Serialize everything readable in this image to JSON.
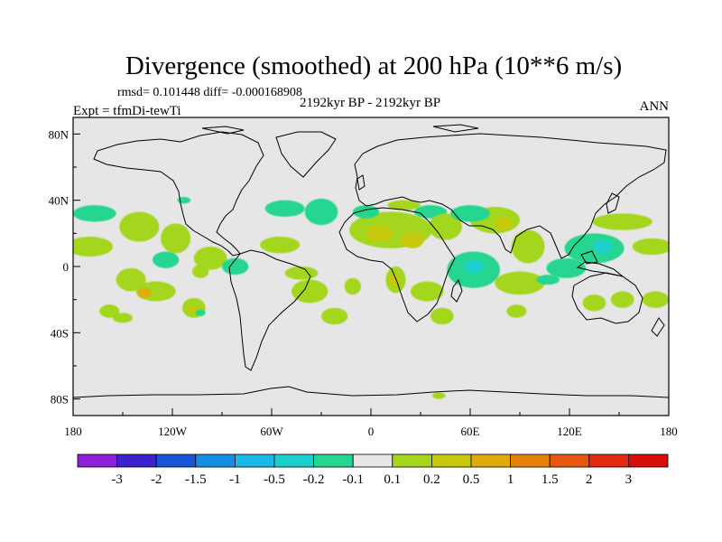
{
  "chart_data": {
    "type": "filled-contour-map",
    "title": "Divergence (smoothed) at 200 hPa (10**6 m/s)",
    "stats": "rmsd= 0.101448 diff= -0.000168908",
    "subtitle": "2192kyr BP - 2192kyr BP",
    "experiment": "Expt = tfmDi-tewTi",
    "season": "ANN",
    "x_range": [
      -180,
      180
    ],
    "y_range": [
      -90,
      90
    ],
    "x_ticks": [
      {
        "value": -180,
        "label": "180"
      },
      {
        "value": -120,
        "label": "120W"
      },
      {
        "value": -60,
        "label": "60W"
      },
      {
        "value": 0,
        "label": "0"
      },
      {
        "value": 60,
        "label": "60E"
      },
      {
        "value": 120,
        "label": "120E"
      },
      {
        "value": 180,
        "label": "180"
      }
    ],
    "y_ticks": [
      {
        "value": 80,
        "label": "80N"
      },
      {
        "value": 40,
        "label": "40N"
      },
      {
        "value": 0,
        "label": "0"
      },
      {
        "value": -40,
        "label": "40S"
      },
      {
        "value": -80,
        "label": "80S"
      }
    ],
    "colorbar": {
      "labels": [
        "-3",
        "-2",
        "-1.5",
        "-1",
        "-0.5",
        "-0.2",
        "-0.1",
        "0.1",
        "0.2",
        "0.5",
        "1",
        "1.5",
        "2",
        "3"
      ],
      "colors": [
        "#8d1fd6",
        "#3b22cc",
        "#1a54d6",
        "#168ee0",
        "#1bb7e6",
        "#1bd0cc",
        "#26d690",
        "#e6e6e6",
        "#a3d61c",
        "#c8c80e",
        "#e0ab0c",
        "#e6820c",
        "#e6560e",
        "#e62a12",
        "#d90c0c"
      ]
    },
    "regions": [
      {
        "level": "0.1",
        "lon": -170,
        "lat": 12,
        "rlon": 14,
        "rlat": 6
      },
      {
        "level": "-0.1",
        "lon": -167,
        "lat": 32,
        "rlon": 13,
        "rlat": 5
      },
      {
        "level": "0.1",
        "lon": -140,
        "lat": 24,
        "rlon": 12,
        "rlat": 9
      },
      {
        "level": "0.1",
        "lon": -118,
        "lat": 17,
        "rlon": 9,
        "rlat": 9
      },
      {
        "level": "0.1",
        "lon": -145,
        "lat": -8,
        "rlon": 9,
        "rlat": 7
      },
      {
        "level": "0.1",
        "lon": -130,
        "lat": -15,
        "rlon": 12,
        "rlat": 6
      },
      {
        "level": "0.5",
        "lon": -137,
        "lat": -16,
        "rlon": 4,
        "rlat": 3
      },
      {
        "level": "0.1",
        "lon": -103,
        "lat": -3,
        "rlon": 5,
        "rlat": 4
      },
      {
        "level": "0.1",
        "lon": -107,
        "lat": -25,
        "rlon": 7,
        "rlat": 6
      },
      {
        "level": "0.2",
        "lon": -108,
        "lat": -26,
        "rlon": 3,
        "rlat": 2
      },
      {
        "level": "-0.1",
        "lon": -103,
        "lat": -28,
        "rlon": 3,
        "rlat": 2
      },
      {
        "level": "0.1",
        "lon": -97,
        "lat": 5,
        "rlon": 10,
        "rlat": 7
      },
      {
        "level": "-0.1",
        "lon": -82,
        "lat": 0,
        "rlon": 8,
        "rlat": 5
      },
      {
        "level": "0.1",
        "lon": -158,
        "lat": -27,
        "rlon": 6,
        "rlat": 4
      },
      {
        "level": "-0.1",
        "lon": -124,
        "lat": 4,
        "rlon": 8,
        "rlat": 5
      },
      {
        "level": "0.1",
        "lon": -150,
        "lat": -31,
        "rlon": 6,
        "rlat": 3
      },
      {
        "level": "-0.1",
        "lon": -113,
        "lat": 40,
        "rlon": 4,
        "rlat": 2
      },
      {
        "level": "-0.1",
        "lon": -52,
        "lat": 35,
        "rlon": 12,
        "rlat": 5
      },
      {
        "level": "-0.1",
        "lon": -30,
        "lat": 33,
        "rlon": 10,
        "rlat": 8
      },
      {
        "level": "0.1",
        "lon": -55,
        "lat": 13,
        "rlon": 12,
        "rlat": 5
      },
      {
        "level": "0.1",
        "lon": -42,
        "lat": -4,
        "rlon": 10,
        "rlat": 4
      },
      {
        "level": "0.1",
        "lon": -37,
        "lat": -15,
        "rlon": 11,
        "rlat": 7
      },
      {
        "level": "0.1",
        "lon": -22,
        "lat": -30,
        "rlon": 8,
        "rlat": 5
      },
      {
        "level": "0.1",
        "lon": -11,
        "lat": -12,
        "rlon": 5,
        "rlat": 5
      },
      {
        "level": "0.1",
        "lon": 12,
        "lat": 22,
        "rlon": 25,
        "rlat": 11
      },
      {
        "level": "0.2",
        "lon": 5,
        "lat": 20,
        "rlon": 8,
        "rlat": 5
      },
      {
        "level": "0.2",
        "lon": 25,
        "lat": 16,
        "rlon": 7,
        "rlat": 5
      },
      {
        "level": "-0.1",
        "lon": -3,
        "lat": 33,
        "rlon": 8,
        "rlat": 4
      },
      {
        "level": "-0.1",
        "lon": 36,
        "lat": 33,
        "rlon": 10,
        "rlat": 4
      },
      {
        "level": "0.1",
        "lon": 20,
        "lat": 37,
        "rlon": 10,
        "rlat": 3
      },
      {
        "level": "0.1",
        "lon": 15,
        "lat": -8,
        "rlon": 6,
        "rlat": 8
      },
      {
        "level": "0.2",
        "lon": 14,
        "lat": -8,
        "rlon": 3,
        "rlat": 4
      },
      {
        "level": "0.1",
        "lon": 34,
        "lat": -15,
        "rlon": 10,
        "rlat": 6
      },
      {
        "level": "0.1",
        "lon": 43,
        "lat": -30,
        "rlon": 7,
        "rlat": 5
      },
      {
        "level": "0.1",
        "lon": 45,
        "lat": 24,
        "rlon": 10,
        "rlat": 8
      },
      {
        "level": "0.1",
        "lon": 75,
        "lat": 28,
        "rlon": 15,
        "rlat": 8
      },
      {
        "level": "0.2",
        "lon": 80,
        "lat": 26,
        "rlon": 5,
        "rlat": 4
      },
      {
        "level": "0.1",
        "lon": 95,
        "lat": 12,
        "rlon": 10,
        "rlat": 10
      },
      {
        "level": "0.1",
        "lon": 152,
        "lat": 27,
        "rlon": 18,
        "rlat": 5
      },
      {
        "level": "0.1",
        "lon": 170,
        "lat": 12,
        "rlon": 12,
        "rlat": 5
      },
      {
        "level": "-0.1",
        "lon": 60,
        "lat": 32,
        "rlon": 12,
        "rlat": 5
      },
      {
        "level": "-0.1",
        "lon": 62,
        "lat": -2,
        "rlon": 16,
        "rlat": 11
      },
      {
        "level": "-0.2",
        "lon": 62,
        "lat": 0,
        "rlon": 6,
        "rlat": 4
      },
      {
        "level": "0.1",
        "lon": 90,
        "lat": -10,
        "rlon": 15,
        "rlat": 7
      },
      {
        "level": "0.1",
        "lon": 88,
        "lat": -27,
        "rlon": 6,
        "rlat": 4
      },
      {
        "level": "-0.1",
        "lon": 135,
        "lat": 11,
        "rlon": 18,
        "rlat": 9
      },
      {
        "level": "-0.2",
        "lon": 140,
        "lat": 12,
        "rlon": 6,
        "rlat": 4
      },
      {
        "level": "-0.1",
        "lon": 118,
        "lat": -1,
        "rlon": 12,
        "rlat": 6
      },
      {
        "level": "-0.1",
        "lon": 107,
        "lat": -8,
        "rlon": 7,
        "rlat": 3
      },
      {
        "level": "0.1",
        "lon": 135,
        "lat": -22,
        "rlon": 7,
        "rlat": 5
      },
      {
        "level": "0.1",
        "lon": 152,
        "lat": -20,
        "rlon": 7,
        "rlat": 5
      },
      {
        "level": "0.1",
        "lon": 172,
        "lat": -20,
        "rlon": 8,
        "rlat": 5
      },
      {
        "level": "0.1",
        "lon": 41,
        "lat": -78,
        "rlon": 4,
        "rlat": 2
      }
    ]
  }
}
